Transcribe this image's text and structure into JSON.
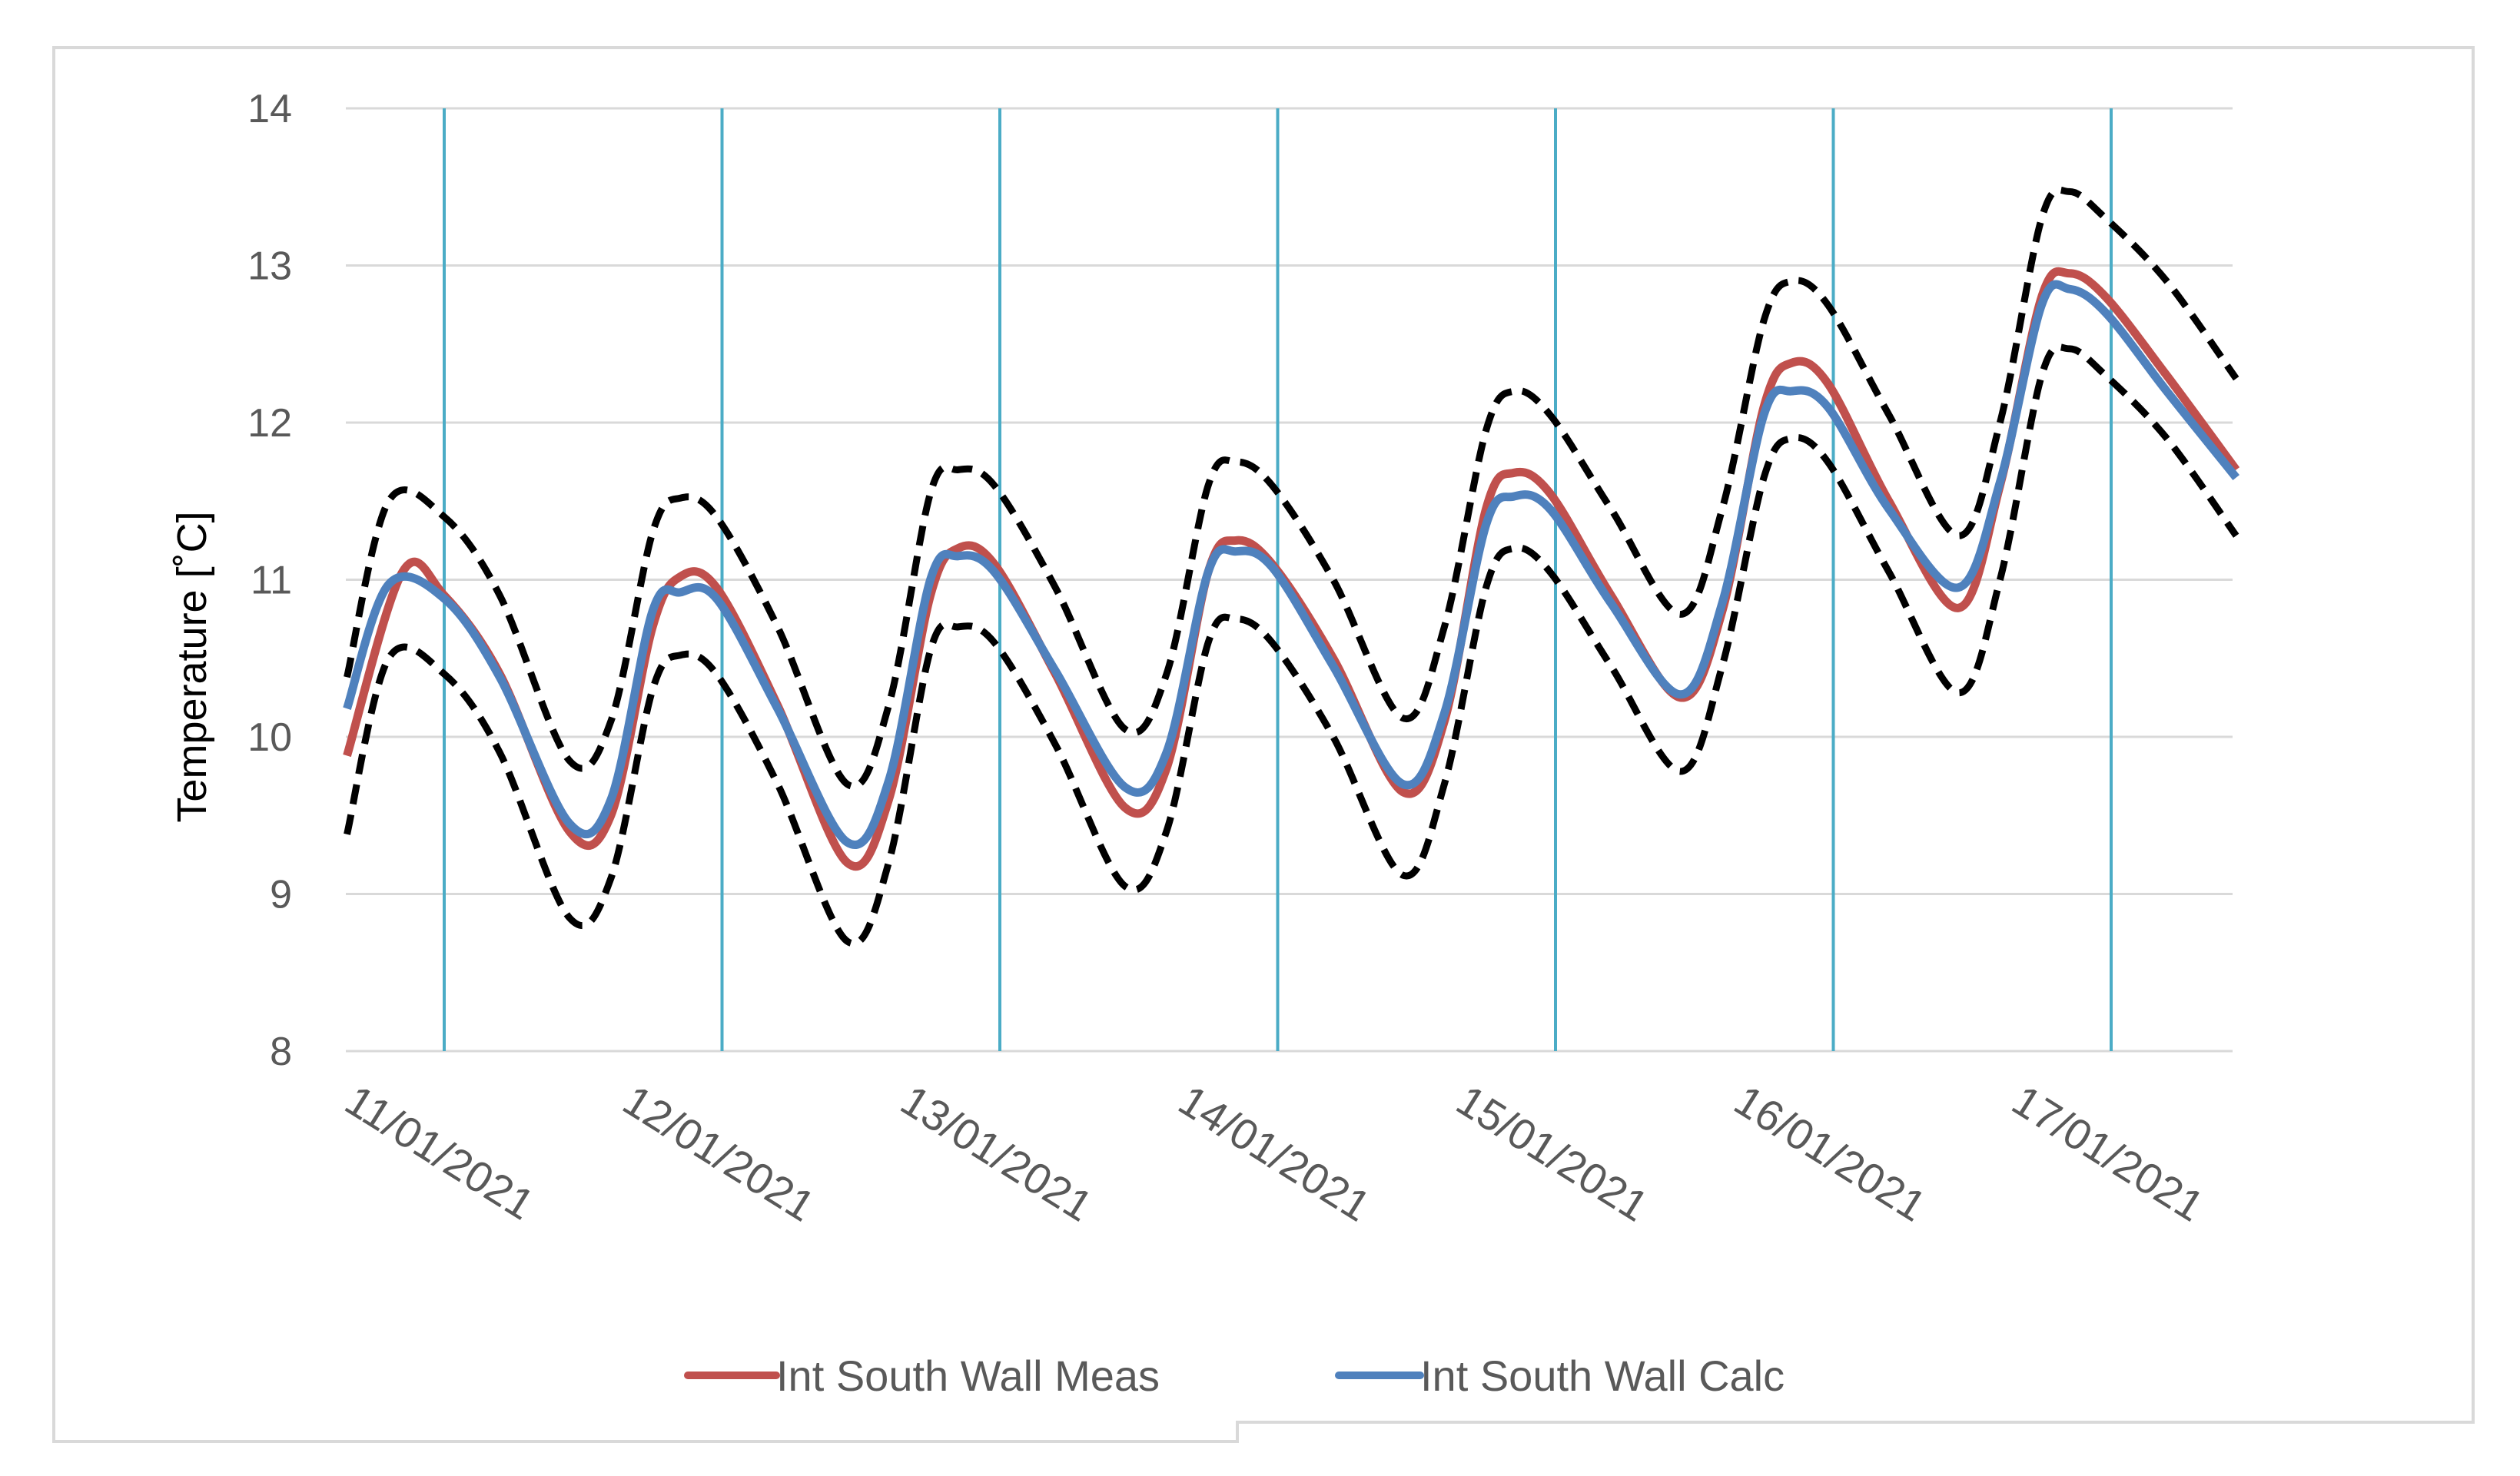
{
  "chart_data": {
    "type": "line",
    "title": "",
    "xlabel": "",
    "ylabel": "Temperature [˚C]",
    "ylim": [
      8,
      14
    ],
    "yticks": [
      8,
      9,
      10,
      11,
      12,
      13,
      14
    ],
    "xticks": [
      "11/01/2021",
      "12/01/2021",
      "13/01/2021",
      "14/01/2021",
      "15/01/2021",
      "16/01/2021",
      "17/01/2021"
    ],
    "x_unit": "days since 11/01/2021 plotted at day-start gridlines",
    "grid": {
      "horizontal": true,
      "vertical": true
    },
    "legend_position": "bottom",
    "colors": {
      "measured": "#c0504d",
      "calculated": "#4f81bd",
      "bounds": "#000000",
      "vgrid": "#4bacc6",
      "hgrid": "#d9d9d9"
    },
    "series": [
      {
        "name": "Int South Wall  Meas",
        "color": "#c0504d",
        "x": [
          -0.35,
          -0.15,
          0.0,
          0.2,
          0.45,
          0.6,
          0.75,
          0.85,
          0.98,
          1.2,
          1.45,
          1.6,
          1.75,
          1.85,
          1.98,
          2.2,
          2.45,
          2.6,
          2.75,
          2.85,
          2.98,
          3.2,
          3.45,
          3.6,
          3.75,
          3.85,
          3.98,
          4.2,
          4.45,
          4.6,
          4.75,
          4.85,
          4.98,
          5.2,
          5.45,
          5.6,
          5.75,
          5.85,
          5.98,
          6.2,
          6.45
        ],
        "y": [
          9.88,
          11.05,
          10.9,
          10.4,
          9.4,
          9.5,
          10.7,
          11.02,
          10.95,
          10.2,
          9.2,
          9.6,
          10.9,
          11.2,
          11.1,
          10.4,
          9.55,
          9.8,
          11.05,
          11.25,
          11.1,
          10.5,
          9.65,
          10.1,
          11.45,
          11.68,
          11.55,
          10.9,
          10.25,
          10.8,
          12.1,
          12.38,
          12.25,
          11.5,
          10.82,
          11.6,
          12.8,
          12.95,
          12.8,
          12.3,
          11.7
        ]
      },
      {
        "name": "Int South Wall Calc",
        "color": "#4f81bd",
        "x": [
          -0.35,
          -0.2,
          0.0,
          0.2,
          0.45,
          0.6,
          0.75,
          0.85,
          0.98,
          1.2,
          1.45,
          1.6,
          1.75,
          1.85,
          1.98,
          2.2,
          2.45,
          2.6,
          2.75,
          2.85,
          2.98,
          3.2,
          3.45,
          3.6,
          3.75,
          3.85,
          3.98,
          4.2,
          4.45,
          4.6,
          4.75,
          4.85,
          4.98,
          5.2,
          5.45,
          5.6,
          5.75,
          5.85,
          5.98,
          6.2,
          6.45
        ],
        "y": [
          10.18,
          10.97,
          10.88,
          10.38,
          9.45,
          9.6,
          10.8,
          10.92,
          10.88,
          10.18,
          9.33,
          9.72,
          11.0,
          11.15,
          11.05,
          10.42,
          9.68,
          9.9,
          11.05,
          11.18,
          11.08,
          10.45,
          9.7,
          10.15,
          11.35,
          11.53,
          11.45,
          10.85,
          10.27,
          10.85,
          12.05,
          12.2,
          12.1,
          11.45,
          10.95,
          11.62,
          12.75,
          12.85,
          12.7,
          12.2,
          11.65
        ]
      },
      {
        "name": "",
        "color": "#000000",
        "dashed": true,
        "x": [
          -0.35,
          -0.2,
          0.0,
          0.2,
          0.45,
          0.6,
          0.75,
          0.85,
          0.98,
          1.2,
          1.45,
          1.6,
          1.75,
          1.85,
          1.98,
          2.2,
          2.45,
          2.6,
          2.75,
          2.85,
          2.98,
          3.2,
          3.45,
          3.6,
          3.75,
          3.85,
          3.98,
          4.2,
          4.45,
          4.6,
          4.75,
          4.85,
          4.98,
          5.2,
          5.45,
          5.6,
          5.75,
          5.85,
          5.98,
          6.2,
          6.45
        ],
        "y": [
          10.38,
          11.5,
          11.4,
          10.9,
          9.85,
          10.1,
          11.3,
          11.52,
          11.4,
          10.7,
          9.7,
          10.2,
          11.55,
          11.7,
          11.6,
          10.95,
          10.05,
          10.4,
          11.6,
          11.75,
          11.6,
          11.0,
          10.12,
          10.7,
          11.95,
          12.2,
          12.05,
          11.45,
          10.78,
          11.45,
          12.65,
          12.9,
          12.75,
          12.05,
          11.28,
          12.0,
          13.3,
          13.47,
          13.3,
          12.9,
          12.28
        ]
      },
      {
        "name": "",
        "color": "#000000",
        "dashed": true,
        "x": [
          -0.35,
          -0.2,
          0.0,
          0.2,
          0.45,
          0.6,
          0.75,
          0.85,
          0.98,
          1.2,
          1.45,
          1.6,
          1.75,
          1.85,
          1.98,
          2.2,
          2.45,
          2.6,
          2.75,
          2.85,
          2.98,
          3.2,
          3.45,
          3.6,
          3.75,
          3.85,
          3.98,
          4.2,
          4.45,
          4.6,
          4.75,
          4.85,
          4.98,
          5.2,
          5.45,
          5.6,
          5.75,
          5.85,
          5.98,
          6.2,
          6.45
        ],
        "y": [
          9.38,
          10.5,
          10.4,
          9.9,
          8.85,
          9.1,
          10.3,
          10.52,
          10.4,
          9.7,
          8.7,
          9.2,
          10.55,
          10.7,
          10.6,
          9.95,
          9.05,
          9.4,
          10.6,
          10.75,
          10.6,
          10.0,
          9.12,
          9.7,
          10.95,
          11.2,
          11.05,
          10.45,
          9.78,
          10.45,
          11.65,
          11.9,
          11.75,
          11.05,
          10.28,
          11.0,
          12.3,
          12.47,
          12.3,
          11.9,
          11.28
        ]
      }
    ]
  }
}
